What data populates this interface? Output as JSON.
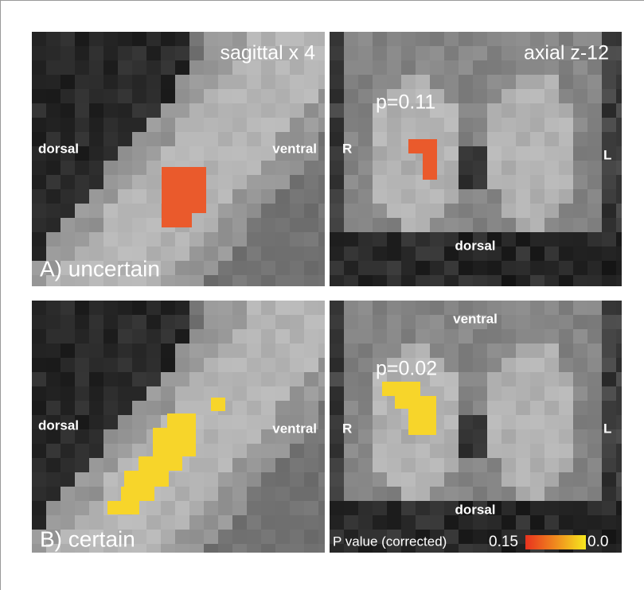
{
  "panels": [
    {
      "orientation": "sagittal  x 4",
      "left_label": "dorsal",
      "right_label": "ventral",
      "panel_label": "A) uncertain"
    },
    {
      "orientation": "axial  z-12",
      "p_label": "p=0.11",
      "left_label": "R",
      "right_label": "L",
      "bottom_label": "dorsal"
    },
    {
      "left_label": "dorsal",
      "right_label": "ventral",
      "panel_label": "B) certain"
    },
    {
      "top_label": "ventral",
      "p_label": "p=0.02",
      "left_label": "R",
      "right_label": "L",
      "bottom_label": "dorsal"
    }
  ],
  "colorbar": {
    "title": "P value (corrected)",
    "low_end_label": "0.15",
    "high_end_label": "0.0"
  }
}
